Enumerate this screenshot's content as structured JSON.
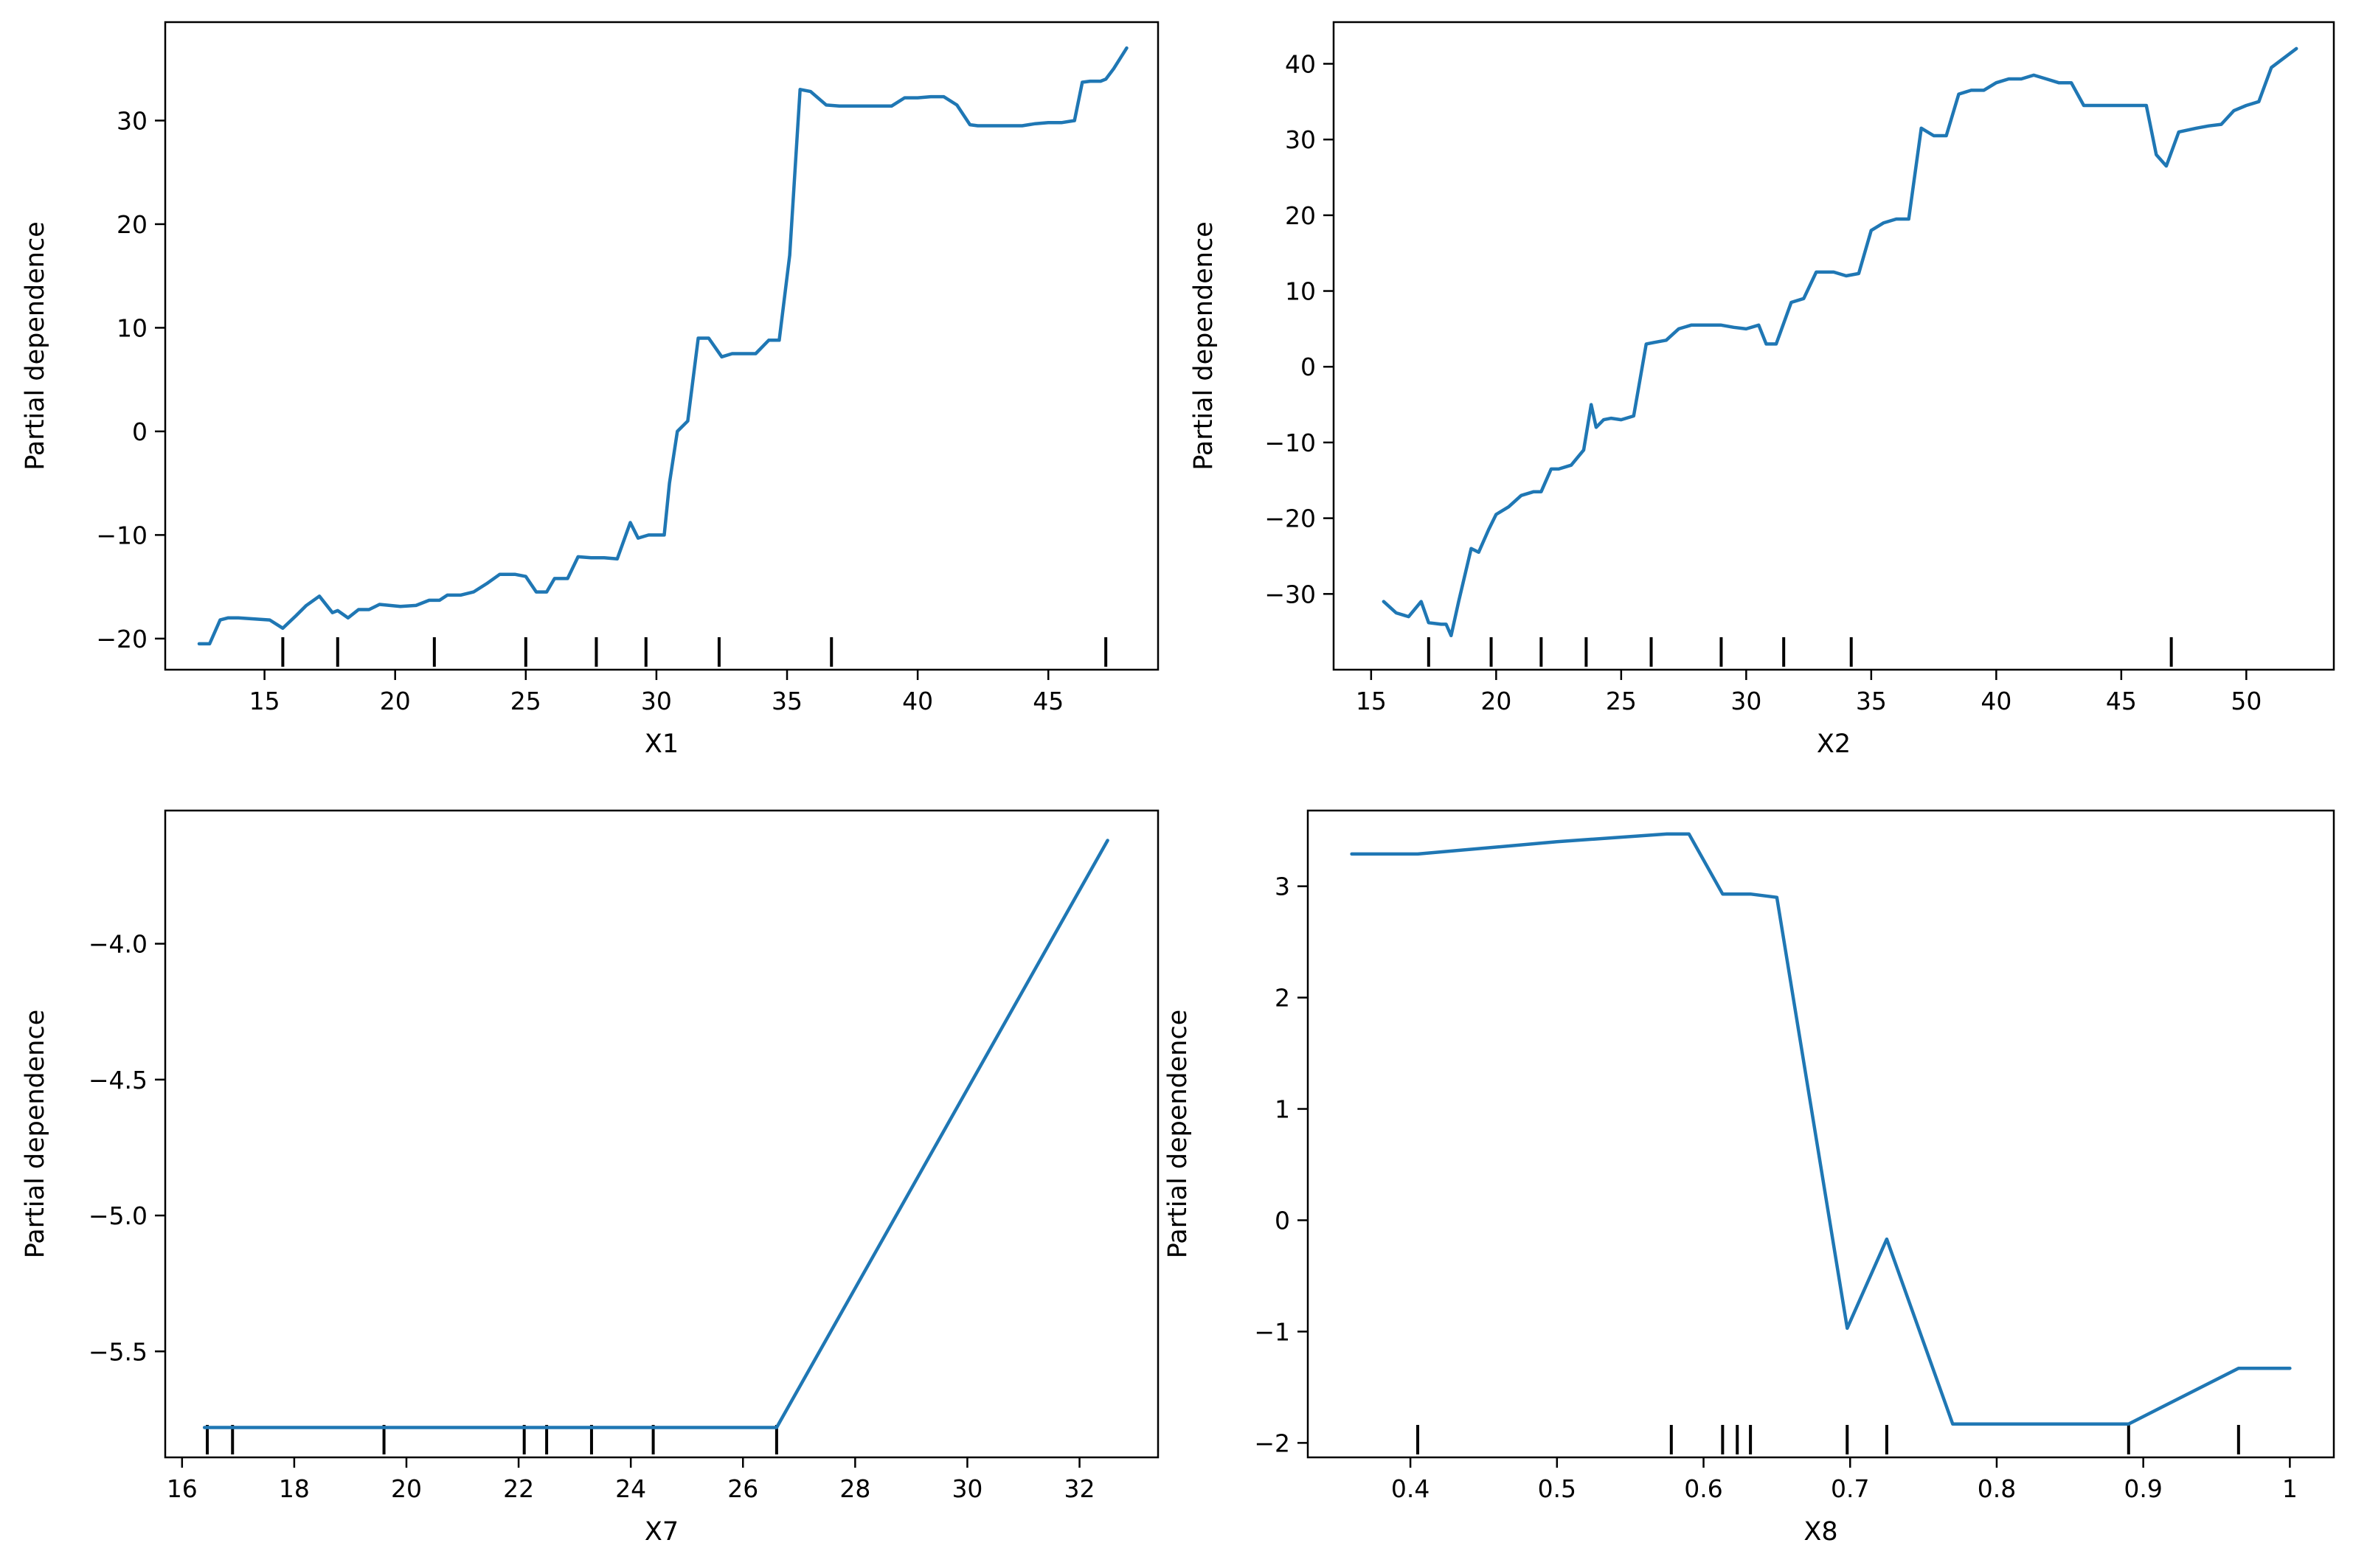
{
  "chart_data": [
    {
      "type": "line",
      "xlabel": "X1",
      "ylabel": "Partial dependence",
      "xlim": [
        11.2,
        49.2
      ],
      "ylim": [
        -23.0,
        39.5
      ],
      "xticks": [
        15,
        20,
        25,
        30,
        35,
        40,
        45
      ],
      "yticks": [
        -20,
        -10,
        0,
        10,
        20,
        30
      ],
      "color": "#1f77b4",
      "x": [
        12.5,
        12.9,
        13.3,
        13.6,
        14.0,
        15.2,
        15.7,
        16.2,
        16.6,
        17.1,
        17.6,
        17.8,
        18.2,
        18.6,
        19.0,
        19.4,
        19.8,
        20.2,
        20.8,
        21.3,
        21.7,
        22.0,
        22.5,
        23.0,
        23.5,
        24.0,
        24.6,
        25.0,
        25.4,
        25.8,
        26.1,
        26.6,
        27.0,
        27.5,
        28.0,
        28.5,
        29.0,
        29.3,
        29.7,
        30.1,
        30.3,
        30.5,
        30.8,
        31.2,
        31.6,
        32.0,
        32.5,
        32.9,
        33.3,
        33.8,
        34.3,
        34.7,
        35.1,
        35.5,
        35.9,
        36.5,
        37.0,
        37.5,
        38.0,
        38.5,
        39.0,
        39.5,
        40.0,
        40.5,
        41.0,
        41.5,
        42.0,
        42.3,
        43.0,
        43.5,
        44.0,
        44.5,
        45.0,
        45.5,
        46.0,
        46.3,
        46.6,
        47.0,
        47.2,
        47.5,
        48.0
      ],
      "y": [
        -20.5,
        -20.5,
        -18.2,
        -18.0,
        -18.0,
        -18.2,
        -19.0,
        -17.8,
        -16.8,
        -15.9,
        -17.5,
        -17.3,
        -18.0,
        -17.2,
        -17.2,
        -16.7,
        -16.8,
        -16.9,
        -16.8,
        -16.3,
        -16.3,
        -15.8,
        -15.8,
        -15.5,
        -14.7,
        -13.8,
        -13.8,
        -14.0,
        -15.5,
        -15.5,
        -14.2,
        -14.2,
        -12.1,
        -12.2,
        -12.2,
        -12.3,
        -8.8,
        -10.3,
        -10.0,
        -10.0,
        -10.0,
        -5.0,
        0.0,
        1.0,
        9.0,
        9.0,
        7.2,
        7.5,
        7.5,
        7.5,
        8.8,
        8.8,
        17.0,
        33.0,
        32.8,
        31.5,
        31.4,
        31.4,
        31.4,
        31.4,
        31.4,
        32.2,
        32.2,
        32.3,
        32.3,
        31.5,
        29.6,
        29.5,
        29.5,
        29.5,
        29.5,
        29.7,
        29.8,
        29.8,
        30.0,
        33.7,
        33.8,
        33.8,
        34.0,
        35.0,
        37.0
      ]
    },
    {
      "type": "line",
      "xlabel": "X2",
      "ylabel": "Partial dependence",
      "xlim": [
        13.5,
        53.5
      ],
      "ylim": [
        -40.0,
        45.5
      ],
      "xticks": [
        15,
        20,
        25,
        30,
        35,
        40,
        45,
        50
      ],
      "yticks": [
        -30,
        -20,
        -10,
        0,
        10,
        20,
        30,
        40
      ],
      "color": "#1f77b4",
      "x": [
        15.5,
        16.0,
        16.5,
        17.0,
        17.3,
        17.8,
        18.0,
        18.2,
        18.5,
        19.0,
        19.3,
        19.7,
        20.0,
        20.5,
        21.0,
        21.5,
        21.8,
        22.2,
        22.5,
        23.0,
        23.5,
        23.8,
        24.0,
        24.3,
        24.6,
        25.0,
        25.5,
        26.0,
        26.3,
        26.8,
        27.3,
        27.8,
        28.3,
        29.0,
        29.5,
        30.0,
        30.5,
        30.8,
        31.2,
        31.8,
        32.3,
        32.8,
        33.5,
        34.0,
        34.5,
        35.0,
        35.5,
        36.0,
        36.5,
        37.0,
        37.5,
        38.0,
        38.5,
        39.0,
        39.5,
        40.0,
        40.5,
        41.0,
        41.5,
        42.0,
        42.5,
        43.0,
        43.5,
        44.0,
        44.5,
        45.0,
        45.5,
        46.0,
        46.4,
        46.8,
        47.3,
        48.0,
        48.5,
        49.0,
        49.5,
        50.0,
        50.5,
        51.0,
        52.0
      ],
      "y": [
        -31.0,
        -32.5,
        -33.0,
        -31.0,
        -33.8,
        -34.0,
        -34.0,
        -35.5,
        -31.0,
        -24.0,
        -24.5,
        -21.5,
        -19.5,
        -18.5,
        -17.0,
        -16.5,
        -16.5,
        -13.5,
        -13.5,
        -13.0,
        -11.0,
        -5.0,
        -8.0,
        -7.0,
        -6.8,
        -7.0,
        -6.5,
        3.0,
        3.2,
        3.5,
        5.0,
        5.5,
        5.5,
        5.5,
        5.2,
        5.0,
        5.5,
        3.0,
        3.0,
        8.5,
        9.0,
        12.5,
        12.5,
        12.0,
        12.3,
        18.0,
        19.0,
        19.5,
        19.5,
        31.5,
        30.5,
        30.5,
        36.0,
        36.5,
        36.5,
        37.5,
        38.0,
        38.0,
        38.5,
        38.0,
        37.5,
        37.5,
        34.5,
        34.5,
        34.5,
        34.5,
        34.5,
        34.5,
        28.0,
        26.5,
        31.0,
        31.5,
        31.8,
        32.0,
        33.8,
        34.5,
        35.0,
        39.5,
        42.0
      ]
    },
    {
      "type": "line",
      "xlabel": "X7",
      "ylabel": "Partial dependence",
      "xlim": [
        15.7,
        33.4
      ],
      "ylim": [
        -5.89,
        -3.51
      ],
      "xticks": [
        16,
        18,
        20,
        22,
        24,
        26,
        28,
        30,
        32
      ],
      "yticks": [
        -5.5,
        -5.0,
        -4.5,
        -4.0
      ],
      "ytick_labels": [
        "−5.5",
        "−5.0",
        "−4.5",
        "−4.0"
      ],
      "color": "#1f77b4",
      "x": [
        16.4,
        26.6,
        32.5
      ],
      "y": [
        -5.78,
        -5.78,
        -3.62
      ]
    },
    {
      "type": "line",
      "xlabel": "X8",
      "ylabel": "Partial dependence",
      "xlim": [
        0.33,
        1.03
      ],
      "ylim": [
        -2.13,
        3.68
      ],
      "xticks": [
        0.4,
        0.5,
        0.6,
        0.7,
        0.8,
        0.9,
        1.0
      ],
      "yticks": [
        -2,
        -1,
        0,
        1,
        2,
        3
      ],
      "color": "#1f77b4",
      "x": [
        0.36,
        0.405,
        0.5,
        0.575,
        0.59,
        0.613,
        0.632,
        0.65,
        0.698,
        0.725,
        0.77,
        0.89,
        0.965,
        1.0
      ],
      "y": [
        3.29,
        3.29,
        3.4,
        3.47,
        3.47,
        2.93,
        2.93,
        2.9,
        -0.97,
        -0.17,
        -1.83,
        -1.83,
        -1.33,
        -1.33
      ]
    }
  ],
  "rug_marks": [
    [
      15.7,
      17.8,
      21.5,
      25.0,
      27.7,
      29.6,
      32.4,
      36.7,
      47.2
    ],
    [
      17.3,
      19.8,
      21.8,
      23.6,
      26.2,
      29.0,
      31.5,
      34.2,
      47.0
    ],
    [
      16.45,
      16.9,
      19.6,
      22.1,
      22.5,
      23.3,
      24.4,
      26.6
    ],
    [
      0.405,
      0.578,
      0.613,
      0.623,
      0.632,
      0.698,
      0.725,
      0.89,
      0.965
    ]
  ]
}
